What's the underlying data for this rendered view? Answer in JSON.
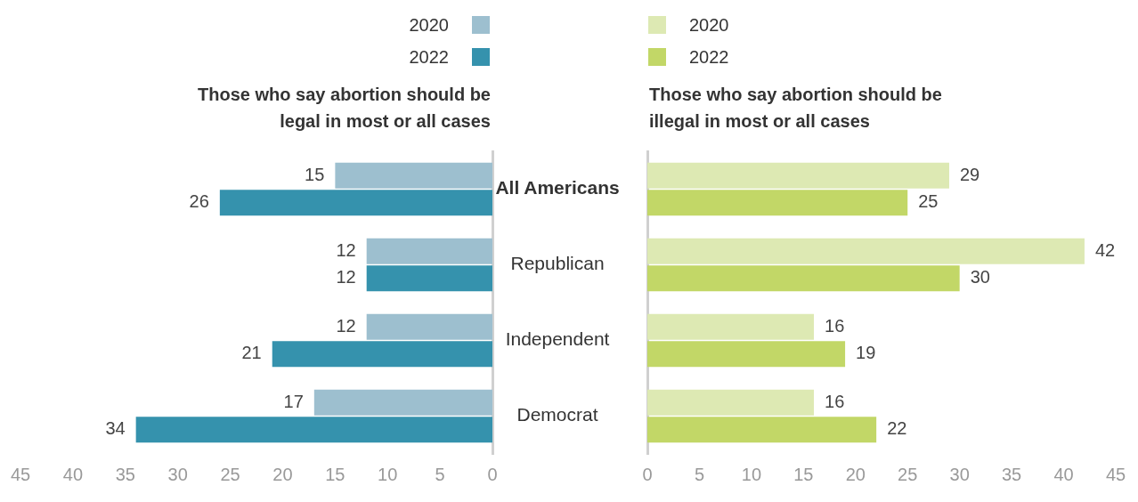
{
  "chart_data": [
    {
      "type": "bar",
      "orientation": "horizontal",
      "title": "Those who say abortion should be legal in most or all cases",
      "categories": [
        "All Americans",
        "Republican",
        "Independent",
        "Democrat"
      ],
      "series": [
        {
          "name": "2020",
          "color": "#9dbfcf",
          "values": [
            15,
            12,
            12,
            17
          ]
        },
        {
          "name": "2022",
          "color": "#3592ad",
          "values": [
            26,
            12,
            21,
            34
          ]
        }
      ],
      "xlim": [
        45,
        0
      ],
      "xticks": [
        45,
        40,
        35,
        30,
        25,
        20,
        15,
        10,
        5,
        0
      ],
      "data_labels": true,
      "legend": "top",
      "grid": false
    },
    {
      "type": "bar",
      "orientation": "horizontal",
      "title": "Those who say abortion should be illegal in most or all cases",
      "series": [
        {
          "name": "2020",
          "color": "#dde9b3",
          "values": [
            29,
            42,
            16,
            16
          ]
        },
        {
          "name": "2022",
          "color": "#c2d767",
          "values": [
            25,
            30,
            19,
            22
          ]
        }
      ],
      "xlim": [
        0,
        45
      ],
      "xticks": [
        0,
        5,
        10,
        15,
        20,
        25,
        30,
        35,
        40,
        45
      ],
      "data_labels": true,
      "legend": "top",
      "grid": false,
      "tick_labels": "x"
    }
  ]
}
